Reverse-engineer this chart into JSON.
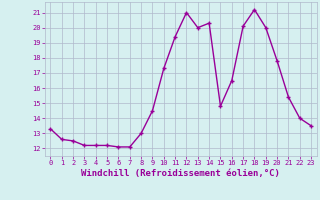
{
  "x": [
    0,
    1,
    2,
    3,
    4,
    5,
    6,
    7,
    8,
    9,
    10,
    11,
    12,
    13,
    14,
    15,
    16,
    17,
    18,
    19,
    20,
    21,
    22,
    23
  ],
  "y": [
    13.3,
    12.6,
    12.5,
    12.2,
    12.2,
    12.2,
    12.1,
    12.1,
    13.0,
    14.5,
    17.3,
    19.4,
    21.0,
    20.0,
    20.3,
    14.8,
    16.5,
    20.1,
    21.2,
    20.0,
    17.8,
    15.4,
    14.0,
    13.5
  ],
  "line_color": "#990099",
  "marker": "+",
  "marker_size": 3,
  "linewidth": 1.0,
  "xlabel": "Windchill (Refroidissement éolien,°C)",
  "xlabel_fontsize": 6.5,
  "ylabel_ticks": [
    12,
    13,
    14,
    15,
    16,
    17,
    18,
    19,
    20,
    21
  ],
  "xtick_labels": [
    "0",
    "1",
    "2",
    "3",
    "4",
    "5",
    "6",
    "7",
    "8",
    "9",
    "10",
    "11",
    "12",
    "13",
    "14",
    "15",
    "16",
    "17",
    "18",
    "19",
    "20",
    "21",
    "22",
    "23"
  ],
  "ylim": [
    11.5,
    21.7
  ],
  "xlim": [
    -0.5,
    23.5
  ],
  "background_color": "#d6f0f0",
  "grid_color": "#b0b8cc",
  "tick_color": "#990099",
  "label_color": "#990099"
}
